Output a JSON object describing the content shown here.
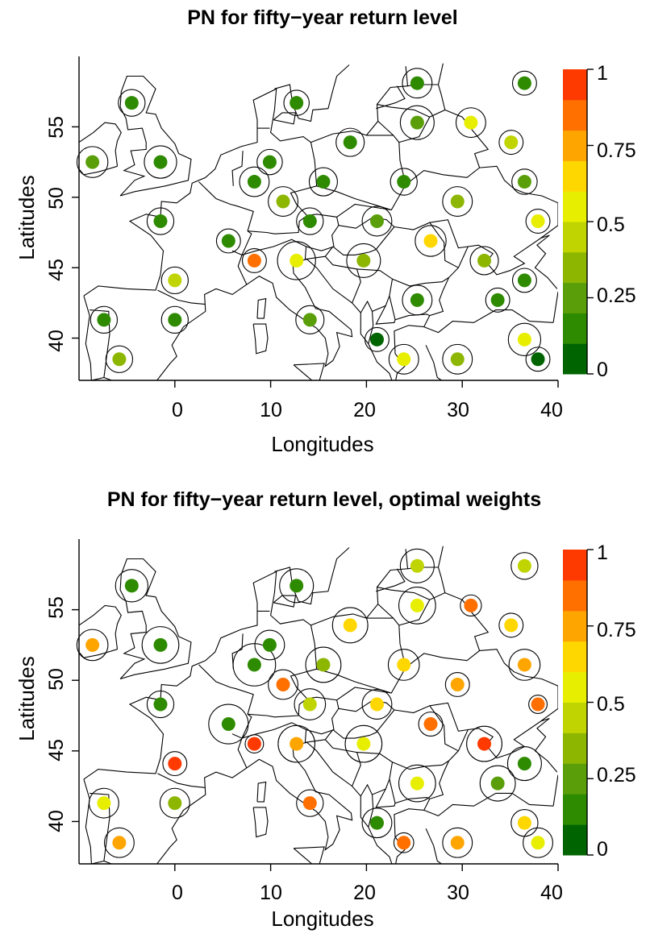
{
  "colors": {
    "scale": [
      "#006400",
      "#2e8b00",
      "#5a9f0a",
      "#8db600",
      "#bfd400",
      "#e8ee00",
      "#ffd700",
      "#ffa500",
      "#ff7000",
      "#ff3a00"
    ],
    "point_border": "#000000",
    "map_line": "#000000"
  },
  "chart_data": [
    {
      "type": "scatter",
      "title": "PN for fifty−year return level",
      "xlabel": "Longitudes",
      "ylabel": "Latitudes",
      "xlim": [
        -10,
        40
      ],
      "ylim": [
        37,
        60
      ],
      "xticks": [
        "0",
        "10",
        "20",
        "30",
        "40"
      ],
      "yticks": [
        "40",
        "45",
        "50",
        "55"
      ],
      "colorbar": {
        "ticks": [
          "0",
          "0.25",
          "0.5",
          "0.75",
          "1"
        ],
        "range": [
          0,
          1
        ],
        "bins": 10
      },
      "points": [
        {
          "lon": -8.6,
          "lat": 52.5,
          "pn": 0.25,
          "r": 1.1
        },
        {
          "lon": -4.5,
          "lat": 56.7,
          "pn": 0.1,
          "r": 0.95
        },
        {
          "lon": -1.5,
          "lat": 52.5,
          "pn": 0.1,
          "r": 1.15
        },
        {
          "lon": -1.5,
          "lat": 48.3,
          "pn": 0.1,
          "r": 0.95
        },
        {
          "lon": 0.0,
          "lat": 44.1,
          "pn": 0.45,
          "r": 0.95
        },
        {
          "lon": 0.0,
          "lat": 41.3,
          "pn": 0.15,
          "r": 0.95
        },
        {
          "lon": -7.4,
          "lat": 41.3,
          "pn": 0.15,
          "r": 0.95
        },
        {
          "lon": -5.8,
          "lat": 38.5,
          "pn": 0.3,
          "r": 0.95
        },
        {
          "lon": 5.6,
          "lat": 46.9,
          "pn": 0.1,
          "r": 0.85
        },
        {
          "lon": 8.3,
          "lat": 45.5,
          "pn": 0.8,
          "r": 0.85
        },
        {
          "lon": 8.3,
          "lat": 51.1,
          "pn": 0.1,
          "r": 1.05
        },
        {
          "lon": 9.9,
          "lat": 52.5,
          "pn": 0.1,
          "r": 0.9
        },
        {
          "lon": 11.3,
          "lat": 49.7,
          "pn": 0.35,
          "r": 1.05
        },
        {
          "lon": 12.7,
          "lat": 56.7,
          "pn": 0.1,
          "r": 0.9
        },
        {
          "lon": 12.7,
          "lat": 45.5,
          "pn": 0.55,
          "r": 1.35
        },
        {
          "lon": 14.1,
          "lat": 48.3,
          "pn": 0.1,
          "r": 0.95
        },
        {
          "lon": 14.1,
          "lat": 41.3,
          "pn": 0.25,
          "r": 1.0
        },
        {
          "lon": 15.5,
          "lat": 51.1,
          "pn": 0.1,
          "r": 1.0
        },
        {
          "lon": 18.3,
          "lat": 53.9,
          "pn": 0.1,
          "r": 1.0
        },
        {
          "lon": 19.7,
          "lat": 45.5,
          "pn": 0.3,
          "r": 1.2
        },
        {
          "lon": 21.1,
          "lat": 48.3,
          "pn": 0.25,
          "r": 1.05
        },
        {
          "lon": 21.1,
          "lat": 39.9,
          "pn": 0.05,
          "r": 0.85
        },
        {
          "lon": 23.9,
          "lat": 51.1,
          "pn": 0.1,
          "r": 0.95
        },
        {
          "lon": 23.9,
          "lat": 38.5,
          "pn": 0.55,
          "r": 1.05
        },
        {
          "lon": 25.3,
          "lat": 58.1,
          "pn": 0.1,
          "r": 1.05
        },
        {
          "lon": 25.3,
          "lat": 55.3,
          "pn": 0.2,
          "r": 1.2
        },
        {
          "lon": 25.3,
          "lat": 42.7,
          "pn": 0.1,
          "r": 1.05
        },
        {
          "lon": 26.7,
          "lat": 46.9,
          "pn": 0.6,
          "r": 1.1
        },
        {
          "lon": 29.5,
          "lat": 49.7,
          "pn": 0.35,
          "r": 1.05
        },
        {
          "lon": 29.5,
          "lat": 38.5,
          "pn": 0.35,
          "r": 1.05
        },
        {
          "lon": 30.9,
          "lat": 55.3,
          "pn": 0.55,
          "r": 1.05
        },
        {
          "lon": 32.3,
          "lat": 45.5,
          "pn": 0.3,
          "r": 1.0
        },
        {
          "lon": 33.7,
          "lat": 42.7,
          "pn": 0.1,
          "r": 0.85
        },
        {
          "lon": 35.1,
          "lat": 53.9,
          "pn": 0.45,
          "r": 0.85
        },
        {
          "lon": 36.5,
          "lat": 58.1,
          "pn": 0.1,
          "r": 0.85
        },
        {
          "lon": 36.5,
          "lat": 51.1,
          "pn": 0.2,
          "r": 0.9
        },
        {
          "lon": 36.5,
          "lat": 44.1,
          "pn": 0.1,
          "r": 0.85
        },
        {
          "lon": 36.5,
          "lat": 39.9,
          "pn": 0.55,
          "r": 1.15
        },
        {
          "lon": 37.9,
          "lat": 48.3,
          "pn": 0.55,
          "r": 0.85
        },
        {
          "lon": 37.9,
          "lat": 38.5,
          "pn": 0.05,
          "r": 0.85
        }
      ]
    },
    {
      "type": "scatter",
      "title": "PN for fifty−year return level, optimal weights",
      "xlabel": "Longitudes",
      "ylabel": "Latitudes",
      "xlim": [
        -10,
        40
      ],
      "ylim": [
        37,
        60
      ],
      "xticks": [
        "0",
        "10",
        "20",
        "30",
        "40"
      ],
      "yticks": [
        "40",
        "45",
        "50",
        "55"
      ],
      "colorbar": {
        "ticks": [
          "0",
          "0.25",
          "0.5",
          "0.75",
          "1"
        ],
        "range": [
          0,
          1
        ],
        "bins": 10
      },
      "points": [
        {
          "lon": -8.6,
          "lat": 52.5,
          "pn": 0.75,
          "r": 1.1
        },
        {
          "lon": -4.5,
          "lat": 56.7,
          "pn": 0.1,
          "r": 1.15
        },
        {
          "lon": -1.5,
          "lat": 52.5,
          "pn": 0.1,
          "r": 1.3
        },
        {
          "lon": -1.5,
          "lat": 48.3,
          "pn": 0.1,
          "r": 0.95
        },
        {
          "lon": 0.0,
          "lat": 44.1,
          "pn": 0.95,
          "r": 0.85
        },
        {
          "lon": 0.0,
          "lat": 41.3,
          "pn": 0.35,
          "r": 1.05
        },
        {
          "lon": -7.4,
          "lat": 41.3,
          "pn": 0.55,
          "r": 1.05
        },
        {
          "lon": -5.8,
          "lat": 38.5,
          "pn": 0.75,
          "r": 1.05
        },
        {
          "lon": 5.6,
          "lat": 46.9,
          "pn": 0.1,
          "r": 1.4
        },
        {
          "lon": 8.3,
          "lat": 45.5,
          "pn": 0.95,
          "r": 0.65
        },
        {
          "lon": 8.3,
          "lat": 51.1,
          "pn": 0.1,
          "r": 1.5
        },
        {
          "lon": 9.9,
          "lat": 52.5,
          "pn": 0.1,
          "r": 1.05
        },
        {
          "lon": 11.3,
          "lat": 49.7,
          "pn": 0.85,
          "r": 1.05
        },
        {
          "lon": 12.7,
          "lat": 56.7,
          "pn": 0.1,
          "r": 1.2
        },
        {
          "lon": 12.7,
          "lat": 45.5,
          "pn": 0.75,
          "r": 1.3
        },
        {
          "lon": 14.1,
          "lat": 48.3,
          "pn": 0.45,
          "r": 1.1
        },
        {
          "lon": 14.1,
          "lat": 41.3,
          "pn": 0.85,
          "r": 0.95
        },
        {
          "lon": 15.5,
          "lat": 51.1,
          "pn": 0.35,
          "r": 1.25
        },
        {
          "lon": 18.3,
          "lat": 53.9,
          "pn": 0.65,
          "r": 1.25
        },
        {
          "lon": 19.7,
          "lat": 45.5,
          "pn": 0.55,
          "r": 1.3
        },
        {
          "lon": 21.1,
          "lat": 48.3,
          "pn": 0.6,
          "r": 1.05
        },
        {
          "lon": 21.1,
          "lat": 39.9,
          "pn": 0.1,
          "r": 1.05
        },
        {
          "lon": 23.9,
          "lat": 51.1,
          "pn": 0.65,
          "r": 1.1
        },
        {
          "lon": 23.9,
          "lat": 38.5,
          "pn": 0.85,
          "r": 0.7
        },
        {
          "lon": 25.3,
          "lat": 58.1,
          "pn": 0.45,
          "r": 1.2
        },
        {
          "lon": 25.3,
          "lat": 55.3,
          "pn": 0.55,
          "r": 1.3
        },
        {
          "lon": 25.3,
          "lat": 42.7,
          "pn": 0.55,
          "r": 1.3
        },
        {
          "lon": 26.7,
          "lat": 46.9,
          "pn": 0.85,
          "r": 0.85
        },
        {
          "lon": 29.5,
          "lat": 49.7,
          "pn": 0.7,
          "r": 0.85
        },
        {
          "lon": 29.5,
          "lat": 38.5,
          "pn": 0.75,
          "r": 1.05
        },
        {
          "lon": 30.9,
          "lat": 55.3,
          "pn": 0.85,
          "r": 0.75
        },
        {
          "lon": 32.3,
          "lat": 45.5,
          "pn": 0.95,
          "r": 1.25
        },
        {
          "lon": 33.7,
          "lat": 42.7,
          "pn": 0.2,
          "r": 1.25
        },
        {
          "lon": 35.1,
          "lat": 53.9,
          "pn": 0.6,
          "r": 0.85
        },
        {
          "lon": 36.5,
          "lat": 58.1,
          "pn": 0.4,
          "r": 0.95
        },
        {
          "lon": 36.5,
          "lat": 51.1,
          "pn": 0.7,
          "r": 1.1
        },
        {
          "lon": 36.5,
          "lat": 44.1,
          "pn": 0.15,
          "r": 1.2
        },
        {
          "lon": 36.5,
          "lat": 39.9,
          "pn": 0.65,
          "r": 0.95
        },
        {
          "lon": 37.9,
          "lat": 48.3,
          "pn": 0.85,
          "r": 0.65
        },
        {
          "lon": 37.9,
          "lat": 38.5,
          "pn": 0.5,
          "r": 1.05
        }
      ]
    }
  ]
}
